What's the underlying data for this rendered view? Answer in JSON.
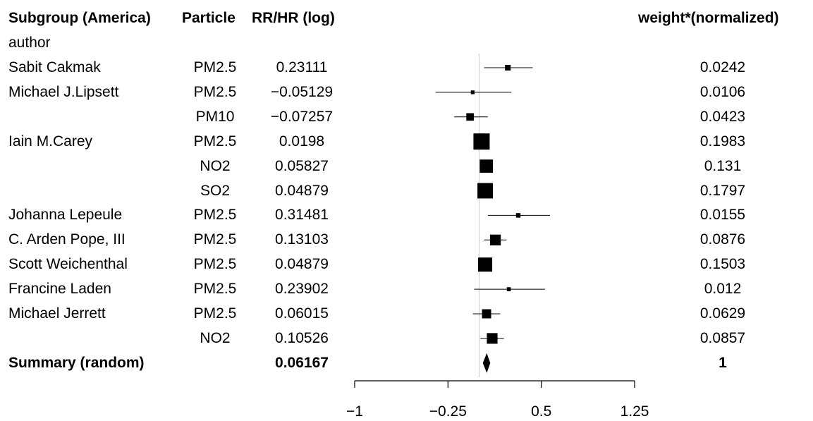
{
  "headers": {
    "subgroup": "Subgroup (America)",
    "particle": "Particle",
    "estimate": "RR/HR (log)",
    "weight": "weight*(normalized)",
    "author": "author"
  },
  "chart_data": {
    "type": "forest",
    "xlim": [
      -1,
      1.25
    ],
    "x_ticks": [
      -1,
      -0.25,
      0.5,
      1.25
    ],
    "x_tick_labels": [
      "−1",
      "−0.25",
      "0.5",
      "1.25"
    ],
    "reference_line": 0,
    "rows": [
      {
        "author": "Sabit Cakmak",
        "particle": "PM2.5",
        "estimate_label": "0.23111",
        "estimate": 0.23111,
        "lower": 0.04,
        "upper": 0.43,
        "weight_label": "0.0242",
        "weight": 0.0242
      },
      {
        "author": "Michael J.Lipsett",
        "particle": "PM2.5",
        "estimate_label": "−0.05129",
        "estimate": -0.05129,
        "lower": -0.35,
        "upper": 0.26,
        "weight_label": "0.0106",
        "weight": 0.0106
      },
      {
        "author": "",
        "particle": "PM10",
        "estimate_label": "−0.07257",
        "estimate": -0.07257,
        "lower": -0.2,
        "upper": 0.07,
        "weight_label": "0.0423",
        "weight": 0.0423
      },
      {
        "author": "Iain M.Carey",
        "particle": "PM2.5",
        "estimate_label": "0.0198",
        "estimate": 0.0198,
        "lower": -0.01,
        "upper": 0.06,
        "weight_label": "0.1983",
        "weight": 0.1983
      },
      {
        "author": "",
        "particle": "NO2",
        "estimate_label": "0.05827",
        "estimate": 0.05827,
        "lower": 0.01,
        "upper": 0.11,
        "weight_label": "0.131",
        "weight": 0.131
      },
      {
        "author": "",
        "particle": "SO2",
        "estimate_label": "0.04879",
        "estimate": 0.04879,
        "lower": 0.0,
        "upper": 0.1,
        "weight_label": "0.1797",
        "weight": 0.1797
      },
      {
        "author": "Johanna Lepeule",
        "particle": "PM2.5",
        "estimate_label": "0.31481",
        "estimate": 0.31481,
        "lower": 0.07,
        "upper": 0.57,
        "weight_label": "0.0155",
        "weight": 0.0155
      },
      {
        "author": "C. Arden Pope, III",
        "particle": "PM2.5",
        "estimate_label": "0.13103",
        "estimate": 0.13103,
        "lower": 0.04,
        "upper": 0.22,
        "weight_label": "0.0876",
        "weight": 0.0876
      },
      {
        "author": "Scott Weichenthal",
        "particle": "PM2.5",
        "estimate_label": "0.04879",
        "estimate": 0.04879,
        "lower": 0.0,
        "upper": 0.1,
        "weight_label": "0.1503",
        "weight": 0.1503
      },
      {
        "author": "Francine Laden",
        "particle": "PM2.5",
        "estimate_label": "0.23902",
        "estimate": 0.23902,
        "lower": -0.04,
        "upper": 0.53,
        "weight_label": "0.012",
        "weight": 0.012
      },
      {
        "author": "Michael Jerrett",
        "particle": "PM2.5",
        "estimate_label": "0.06015",
        "estimate": 0.06015,
        "lower": -0.05,
        "upper": 0.17,
        "weight_label": "0.0629",
        "weight": 0.0629
      },
      {
        "author": "",
        "particle": "NO2",
        "estimate_label": "0.10526",
        "estimate": 0.10526,
        "lower": 0.01,
        "upper": 0.2,
        "weight_label": "0.0857",
        "weight": 0.0857
      }
    ],
    "summary": {
      "label": "Summary (random)",
      "estimate_label": "0.06167",
      "estimate": 0.06167,
      "lower": 0.03,
      "upper": 0.09,
      "weight_label": "1",
      "weight": 1
    }
  }
}
